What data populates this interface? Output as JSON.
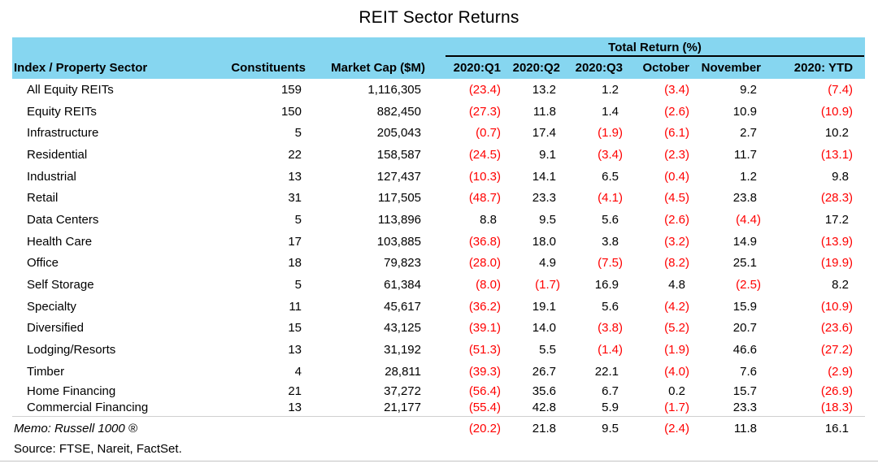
{
  "title": "REIT Sector Returns",
  "colors": {
    "header_bg": "#86D6F0",
    "negative_text": "#FF0000",
    "positive_text": "#000000"
  },
  "chart_data": {
    "type": "table",
    "title": "REIT Sector Returns",
    "group_header": "Total Return (%)",
    "negative_format": "parentheses shown in red",
    "columns": [
      "Index / Property Sector",
      "Constituents",
      "Market Cap ($M)",
      "2020:Q1",
      "2020:Q2",
      "2020:Q3",
      "October",
      "November",
      "2020: YTD"
    ],
    "rows": [
      {
        "sector": "All Equity REITs",
        "constituents": "159",
        "market_cap": "1,116,305",
        "returns": [
          "(23.4)",
          "13.2",
          "1.2",
          "(3.4)",
          "9.2",
          "(7.4)"
        ],
        "tight": false
      },
      {
        "sector": "Equity REITs",
        "constituents": "150",
        "market_cap": "882,450",
        "returns": [
          "(27.3)",
          "11.8",
          "1.4",
          "(2.6)",
          "10.9",
          "(10.9)"
        ],
        "tight": false
      },
      {
        "sector": "Infrastructure",
        "constituents": "5",
        "market_cap": "205,043",
        "returns": [
          "(0.7)",
          "17.4",
          "(1.9)",
          "(6.1)",
          "2.7",
          "10.2"
        ],
        "tight": false
      },
      {
        "sector": "Residential",
        "constituents": "22",
        "market_cap": "158,587",
        "returns": [
          "(24.5)",
          "9.1",
          "(3.4)",
          "(2.3)",
          "11.7",
          "(13.1)"
        ],
        "tight": false
      },
      {
        "sector": "Industrial",
        "constituents": "13",
        "market_cap": "127,437",
        "returns": [
          "(10.3)",
          "14.1",
          "6.5",
          "(0.4)",
          "1.2",
          "9.8"
        ],
        "tight": false
      },
      {
        "sector": "Retail",
        "constituents": "31",
        "market_cap": "117,505",
        "returns": [
          "(48.7)",
          "23.3",
          "(4.1)",
          "(4.5)",
          "23.8",
          "(28.3)"
        ],
        "tight": false
      },
      {
        "sector": "Data Centers",
        "constituents": "5",
        "market_cap": "113,896",
        "returns": [
          "8.8",
          "9.5",
          "5.6",
          "(2.6)",
          "(4.4)",
          "17.2"
        ],
        "tight": false
      },
      {
        "sector": "Health Care",
        "constituents": "17",
        "market_cap": "103,885",
        "returns": [
          "(36.8)",
          "18.0",
          "3.8",
          "(3.2)",
          "14.9",
          "(13.9)"
        ],
        "tight": false
      },
      {
        "sector": "Office",
        "constituents": "18",
        "market_cap": "79,823",
        "returns": [
          "(28.0)",
          "4.9",
          "(7.5)",
          "(8.2)",
          "25.1",
          "(19.9)"
        ],
        "tight": false
      },
      {
        "sector": "Self Storage",
        "constituents": "5",
        "market_cap": "61,384",
        "returns": [
          "(8.0)",
          "(1.7)",
          "16.9",
          "4.8",
          "(2.5)",
          "8.2"
        ],
        "tight": false
      },
      {
        "sector": "Specialty",
        "constituents": "11",
        "market_cap": "45,617",
        "returns": [
          "(36.2)",
          "19.1",
          "5.6",
          "(4.2)",
          "15.9",
          "(10.9)"
        ],
        "tight": false
      },
      {
        "sector": "Diversified",
        "constituents": "15",
        "market_cap": "43,125",
        "returns": [
          "(39.1)",
          "14.0",
          "(3.8)",
          "(5.2)",
          "20.7",
          "(23.6)"
        ],
        "tight": false
      },
      {
        "sector": "Lodging/Resorts",
        "constituents": "13",
        "market_cap": "31,192",
        "returns": [
          "(51.3)",
          "5.5",
          "(1.4)",
          "(1.9)",
          "46.6",
          "(27.2)"
        ],
        "tight": false
      },
      {
        "sector": "Timber",
        "constituents": "4",
        "market_cap": "28,811",
        "returns": [
          "(39.3)",
          "26.7",
          "22.1",
          "(4.0)",
          "7.6",
          "(2.9)"
        ],
        "tight": false
      },
      {
        "sector": "Home Financing",
        "constituents": "21",
        "market_cap": "37,272",
        "returns": [
          "(56.4)",
          "35.6",
          "6.7",
          "0.2",
          "15.7",
          "(26.9)"
        ],
        "tight": true
      },
      {
        "sector": "Commercial Financing",
        "constituents": "13",
        "market_cap": "21,177",
        "returns": [
          "(55.4)",
          "42.8",
          "5.9",
          "(1.7)",
          "23.3",
          "(18.3)"
        ],
        "tight": true
      }
    ],
    "memo_row": {
      "label": "Memo: Russell 1000 ®",
      "returns": [
        "(20.2)",
        "21.8",
        "9.5",
        "(2.4)",
        "11.8",
        "16.1"
      ]
    },
    "source": "Source: FTSE, Nareit, FactSet."
  }
}
